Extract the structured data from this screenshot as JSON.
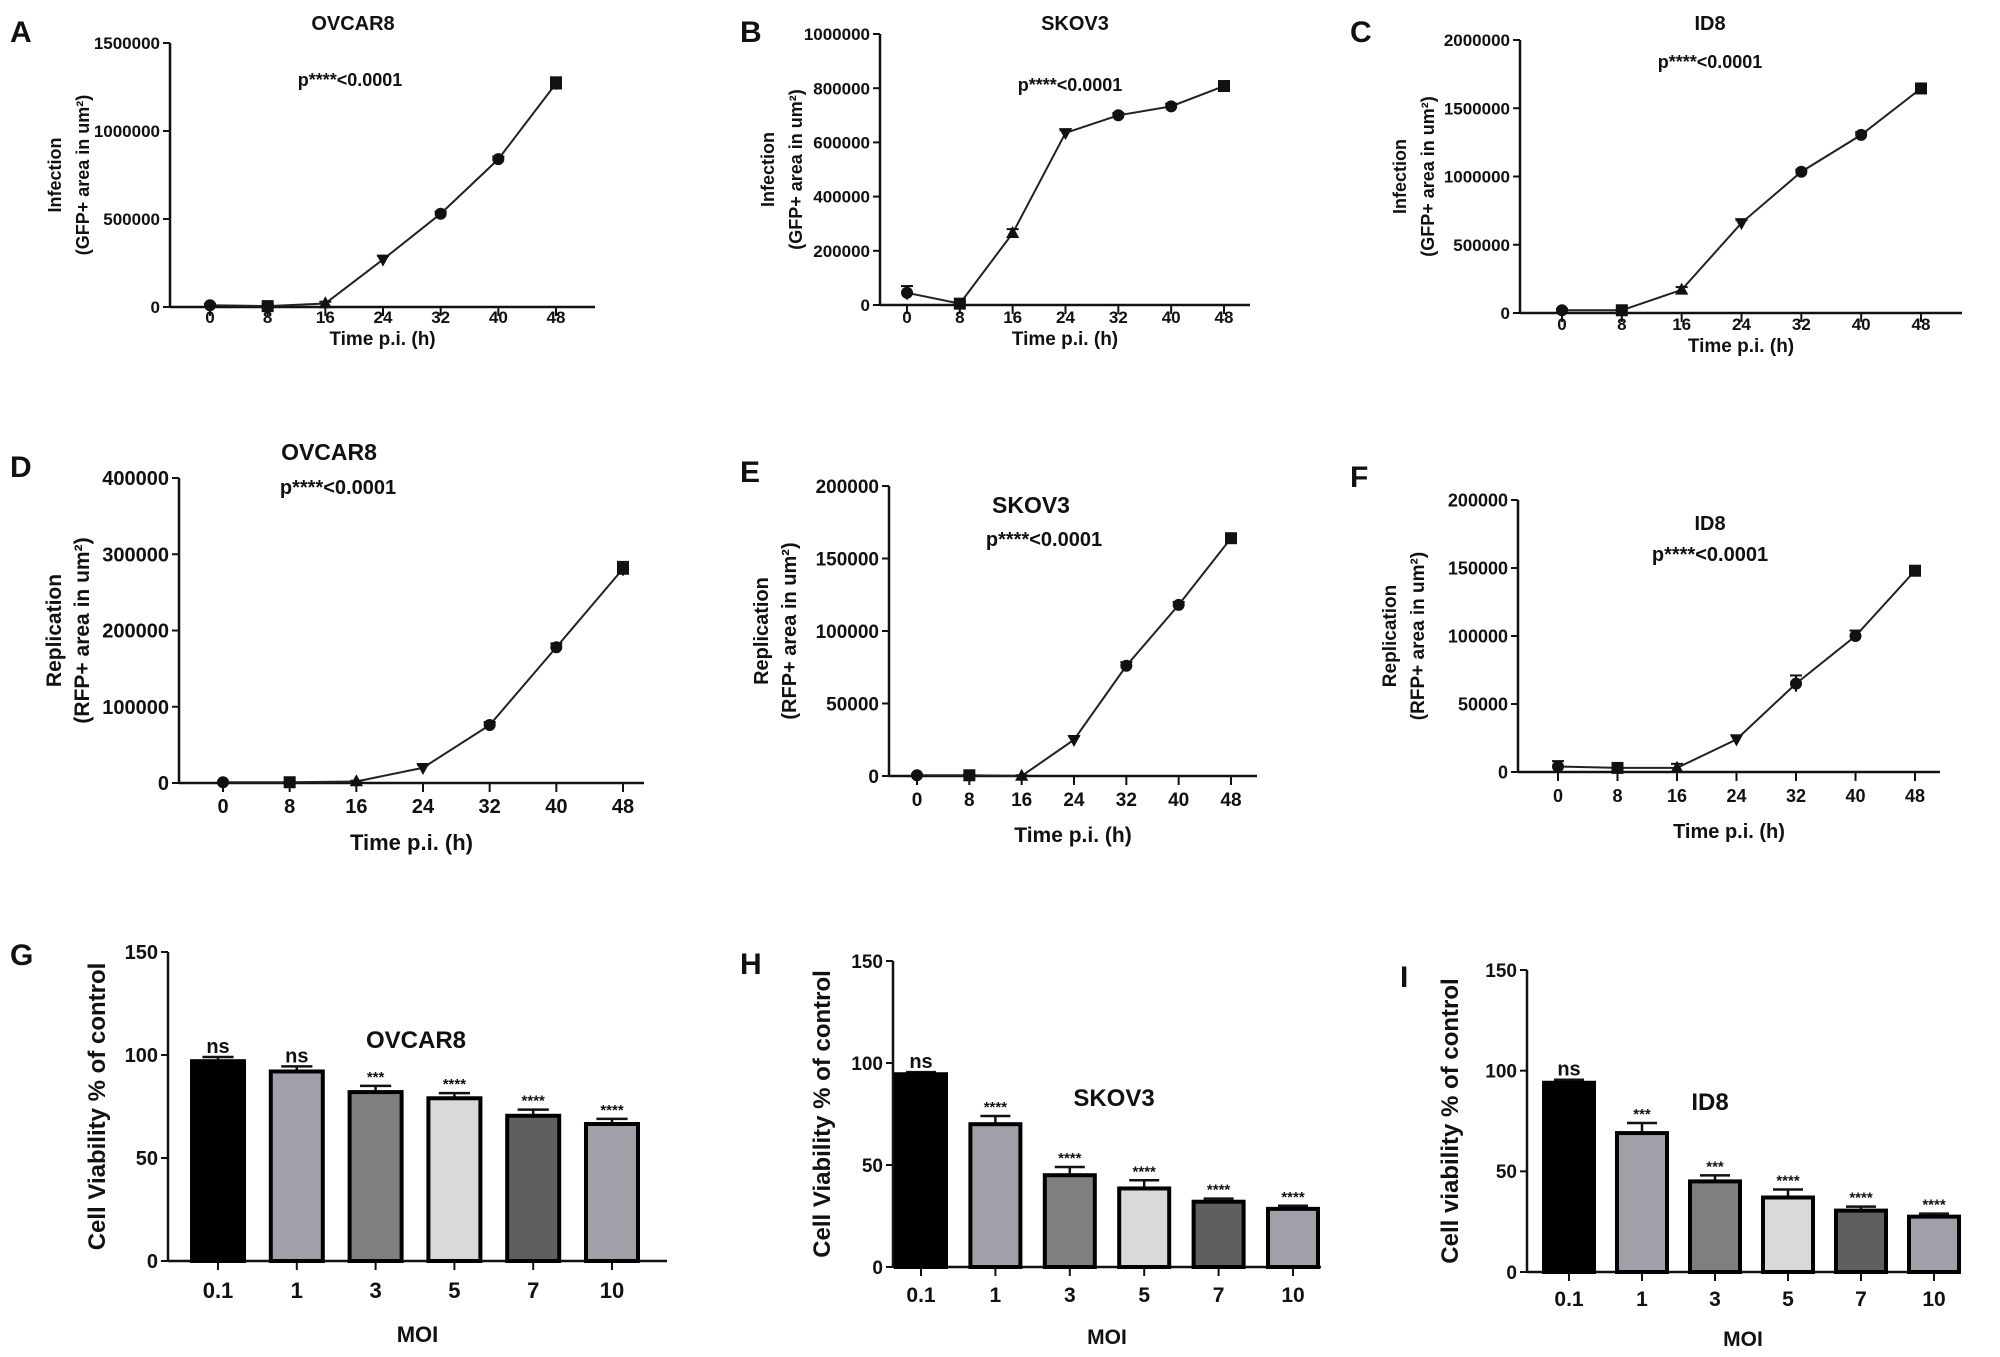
{
  "chart_data": [
    {
      "panel": "A",
      "type": "line",
      "title": "OVCAR8",
      "annotation": "p****<0.0001",
      "xlabel": "Time p.i. (h)",
      "ylabel": [
        "Infection",
        "(GFP+ area in um²)"
      ],
      "x": [
        0,
        8,
        16,
        24,
        32,
        40,
        48
      ],
      "xticks": [
        "0",
        "8",
        "16",
        "24",
        "32",
        "40",
        "48"
      ],
      "ylim": [
        0,
        1500000
      ],
      "yticks": [
        "0",
        "500000",
        "1000000",
        "1500000"
      ],
      "values": [
        10000,
        5000,
        20000,
        270000,
        530000,
        840000,
        1270000
      ],
      "errors": [
        8000,
        8000,
        10000,
        20000,
        12000,
        15000,
        35000
      ],
      "markers": [
        "circle",
        "square",
        "triangle-up",
        "triangle-down",
        "circle",
        "circle",
        "square"
      ]
    },
    {
      "panel": "B",
      "type": "line",
      "title": "SKOV3",
      "annotation": "p****<0.0001",
      "xlabel": "Time p.i. (h)",
      "ylabel": [
        "Infection",
        "(GFP+ area in um²)"
      ],
      "x": [
        0,
        8,
        16,
        24,
        32,
        40,
        48
      ],
      "xticks": [
        "0",
        "8",
        "16",
        "24",
        "32",
        "40",
        "48"
      ],
      "ylim": [
        0,
        1000000
      ],
      "yticks": [
        "0",
        "200000",
        "400000",
        "600000",
        "800000",
        "1000000"
      ],
      "values": [
        45000,
        5000,
        265000,
        635000,
        700000,
        733000,
        808000
      ],
      "errors": [
        25000,
        8000,
        15000,
        10000,
        8000,
        10000,
        10000
      ],
      "markers": [
        "circle",
        "square",
        "triangle-up",
        "triangle-down",
        "circle",
        "circle",
        "square"
      ]
    },
    {
      "panel": "C",
      "type": "line",
      "title": "ID8",
      "annotation": "p****<0.0001",
      "xlabel": "Time p.i. (h)",
      "ylabel": [
        "Infection",
        "(GFP+ area in um²)"
      ],
      "x": [
        0,
        8,
        16,
        24,
        32,
        40,
        48
      ],
      "xticks": [
        "0",
        "8",
        "16",
        "24",
        "32",
        "40",
        "48"
      ],
      "ylim": [
        0,
        2000000
      ],
      "yticks": [
        "0",
        "500000",
        "1000000",
        "1500000",
        "2000000"
      ],
      "values": [
        20000,
        20000,
        170000,
        660000,
        1035000,
        1305000,
        1645000
      ],
      "errors": [
        10000,
        10000,
        20000,
        20000,
        15000,
        20000,
        30000
      ],
      "markers": [
        "circle",
        "square",
        "triangle-up",
        "triangle-down",
        "circle",
        "circle",
        "square"
      ]
    },
    {
      "panel": "D",
      "type": "line",
      "title": "OVCAR8",
      "annotation": "p****<0.0001",
      "xlabel": "Time p.i. (h)",
      "ylabel": [
        "Replication",
        "(RFP+ area in um²)"
      ],
      "x": [
        0,
        8,
        16,
        24,
        32,
        40,
        48
      ],
      "xticks": [
        "0",
        "8",
        "16",
        "24",
        "32",
        "40",
        "48"
      ],
      "ylim": [
        0,
        400000
      ],
      "yticks": [
        "0",
        "100000",
        "200000",
        "300000",
        "400000"
      ],
      "values": [
        1000,
        1000,
        2000,
        20000,
        76000,
        178000,
        281000
      ],
      "errors": [
        1000,
        1000,
        1000,
        4000,
        4000,
        5000,
        9000
      ],
      "markers": [
        "circle",
        "square",
        "triangle-up",
        "triangle-down",
        "circle",
        "circle",
        "square"
      ]
    },
    {
      "panel": "E",
      "type": "line",
      "title": "SKOV3",
      "annotation": "p****<0.0001",
      "xlabel": "Time p.i. (h)",
      "ylabel": [
        "Replication",
        "(RFP+ area in um²)"
      ],
      "x": [
        0,
        8,
        16,
        24,
        32,
        40,
        48
      ],
      "xticks": [
        "0",
        "8",
        "16",
        "24",
        "32",
        "40",
        "48"
      ],
      "ylim": [
        0,
        200000
      ],
      "yticks": [
        "0",
        "50000",
        "100000",
        "150000",
        "200000"
      ],
      "values": [
        500,
        500,
        0,
        25000,
        76000,
        118000,
        164000
      ],
      "errors": [
        500,
        500,
        500,
        2500,
        2500,
        2000,
        2500
      ],
      "markers": [
        "circle",
        "square",
        "triangle-up",
        "triangle-down",
        "circle",
        "circle",
        "square"
      ]
    },
    {
      "panel": "F",
      "type": "line",
      "title": "ID8",
      "annotation": "p****<0.0001",
      "xlabel": "Time p.i. (h)",
      "ylabel": [
        "Replication",
        "(RFP+ area in um²)"
      ],
      "x": [
        0,
        8,
        16,
        24,
        32,
        40,
        48
      ],
      "xticks": [
        "0",
        "8",
        "16",
        "24",
        "32",
        "40",
        "48"
      ],
      "ylim": [
        0,
        200000
      ],
      "yticks": [
        "0",
        "50000",
        "100000",
        "150000",
        "200000"
      ],
      "values": [
        4000,
        3000,
        3000,
        24000,
        65000,
        100000,
        148000
      ],
      "errors": [
        4000,
        3000,
        3000,
        3000,
        6000,
        4000,
        3000
      ],
      "markers": [
        "circle",
        "square",
        "triangle-up",
        "triangle-down",
        "circle",
        "circle",
        "square"
      ]
    },
    {
      "panel": "G",
      "type": "bar",
      "title": "OVCAR8",
      "xlabel": "MOI",
      "ylabel": [
        "Cell Viability % of control"
      ],
      "categories": [
        "0.1",
        "1",
        "3",
        "5",
        "7",
        "10"
      ],
      "ylim": [
        0,
        150
      ],
      "yticks": [
        "0",
        "50",
        "100",
        "150"
      ],
      "values": [
        97,
        92,
        82,
        79,
        70.5,
        66.5
      ],
      "errors": [
        2,
        2.5,
        3,
        2.5,
        3,
        2.5
      ],
      "significance": [
        "ns",
        "ns",
        "***",
        "****",
        "****",
        "****"
      ],
      "colors": [
        "#000000",
        "#a0a0a8",
        "#7f7f7f",
        "#d9d9d9",
        "#5f5f5f",
        "#a0a0a8"
      ]
    },
    {
      "panel": "H",
      "type": "bar",
      "title": "SKOV3",
      "xlabel": "MOI",
      "ylabel": [
        "Cell Viability % of control"
      ],
      "categories": [
        "0.1",
        "1",
        "3",
        "5",
        "7",
        "10"
      ],
      "ylim": [
        0,
        150
      ],
      "yticks": [
        "0",
        "50",
        "100",
        "150"
      ],
      "values": [
        94.5,
        70,
        45,
        38.5,
        32,
        28.5
      ],
      "errors": [
        1,
        4,
        4,
        4,
        1.5,
        1.5
      ],
      "significance": [
        "ns",
        "****",
        "****",
        "****",
        "****",
        "****"
      ],
      "colors": [
        "#000000",
        "#a0a0a8",
        "#7f7f7f",
        "#d9d9d9",
        "#5f5f5f",
        "#a0a0a8"
      ]
    },
    {
      "panel": "I",
      "type": "bar",
      "title": "ID8",
      "xlabel": "MOI",
      "ylabel": [
        "Cell viability % of control"
      ],
      "categories": [
        "0.1",
        "1",
        "3",
        "5",
        "7",
        "10"
      ],
      "ylim": [
        0,
        150
      ],
      "yticks": [
        "0",
        "50",
        "100",
        "150"
      ],
      "values": [
        94,
        69,
        45,
        37,
        30.5,
        27.5
      ],
      "errors": [
        1.5,
        5,
        3,
        4,
        2,
        1.5
      ],
      "significance": [
        "ns",
        "***",
        "***",
        "****",
        "****",
        "****"
      ],
      "colors": [
        "#000000",
        "#a0a0a8",
        "#7f7f7f",
        "#d9d9d9",
        "#5f5f5f",
        "#a0a0a8"
      ]
    }
  ]
}
